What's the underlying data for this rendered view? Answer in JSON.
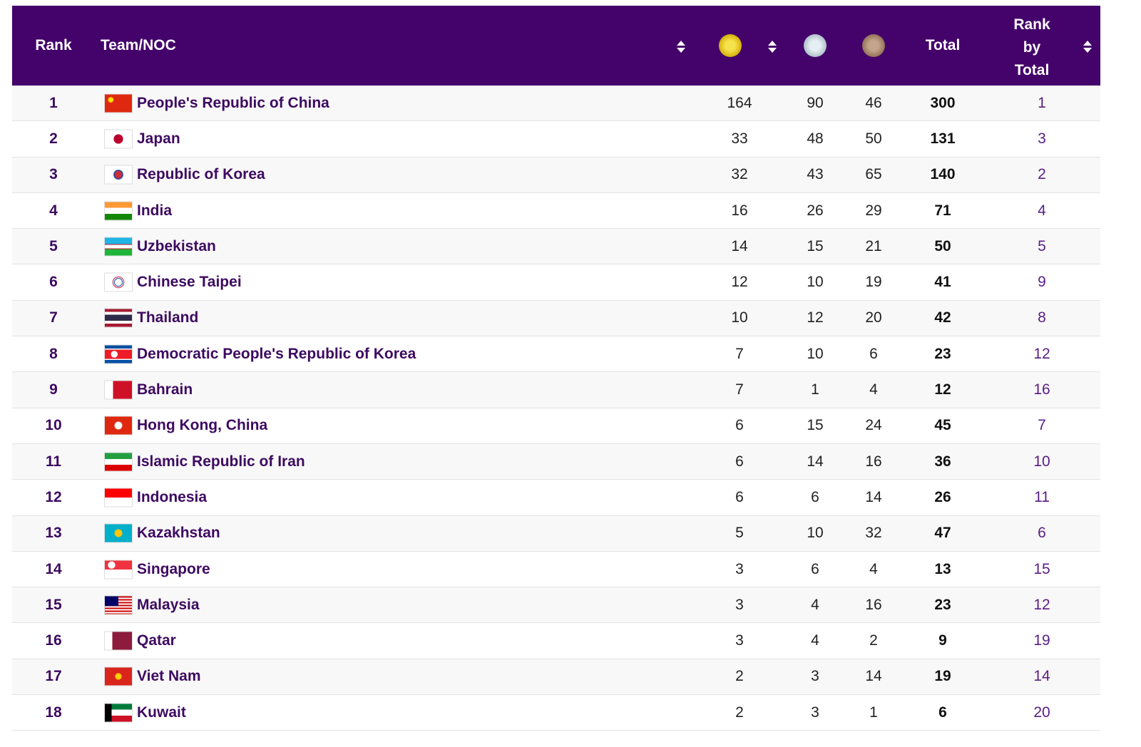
{
  "header": {
    "rank": "Rank",
    "team": "Team/NOC",
    "total": "Total",
    "rank_by_total": "Rank by Total"
  },
  "table": {
    "rows": [
      [
        1,
        "People's Republic of China",
        164,
        90,
        46,
        300,
        1
      ],
      [
        2,
        "Japan",
        33,
        48,
        50,
        131,
        3
      ],
      [
        3,
        "Republic of Korea",
        32,
        43,
        65,
        140,
        2
      ],
      [
        4,
        "India",
        16,
        26,
        29,
        71,
        4
      ],
      [
        5,
        "Uzbekistan",
        14,
        15,
        21,
        50,
        5
      ],
      [
        6,
        "Chinese Taipei",
        12,
        10,
        19,
        41,
        9
      ],
      [
        7,
        "Thailand",
        10,
        12,
        20,
        42,
        8
      ],
      [
        8,
        "Democratic People's Republic of Korea",
        7,
        10,
        6,
        23,
        12
      ],
      [
        9,
        "Bahrain",
        7,
        1,
        4,
        12,
        16
      ],
      [
        10,
        "Hong Kong, China",
        6,
        15,
        24,
        45,
        7
      ],
      [
        11,
        "Islamic Republic of Iran",
        6,
        14,
        16,
        36,
        10
      ],
      [
        12,
        "Indonesia",
        6,
        6,
        14,
        26,
        11
      ],
      [
        13,
        "Kazakhstan",
        5,
        10,
        32,
        47,
        6
      ],
      [
        14,
        "Singapore",
        3,
        6,
        4,
        13,
        15
      ],
      [
        15,
        "Malaysia",
        3,
        4,
        16,
        23,
        12
      ],
      [
        16,
        "Qatar",
        3,
        4,
        2,
        9,
        19
      ],
      [
        17,
        "Viet Nam",
        2,
        3,
        14,
        19,
        14
      ],
      [
        18,
        "Kuwait",
        2,
        3,
        1,
        6,
        20
      ]
    ]
  }
}
